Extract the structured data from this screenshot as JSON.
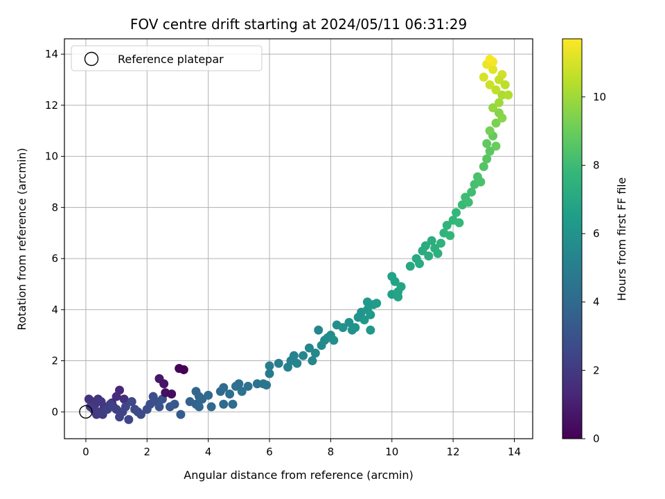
{
  "chart_data": {
    "type": "scatter",
    "title": "FOV centre drift starting at 2024/05/11 06:31:29",
    "xlabel": "Angular distance from reference (arcmin)",
    "ylabel": "Rotation from reference (arcmin)",
    "xlim": [
      -0.7,
      14.6
    ],
    "ylim": [
      -1.05,
      14.6
    ],
    "xticks": [
      0,
      2,
      4,
      6,
      8,
      10,
      12,
      14
    ],
    "yticks": [
      0,
      2,
      4,
      6,
      8,
      10,
      12,
      14
    ],
    "grid": true,
    "legend_position": "upper-left",
    "legend": [
      "Reference platepar"
    ],
    "reference_point": {
      "x": 0,
      "y": 0
    },
    "colorbar": {
      "label": "Hours from first FF file",
      "range": [
        0,
        11.7
      ],
      "ticks": [
        0,
        2,
        4,
        6,
        8,
        10
      ],
      "colormap": "viridis"
    },
    "colormap_stops": [
      "#440154",
      "#482878",
      "#3e4989",
      "#31688e",
      "#26828e",
      "#1f9e89",
      "#35b779",
      "#6ece58",
      "#b5de2b",
      "#fde725"
    ],
    "points": [
      [
        1.1,
        0.85,
        1.3
      ],
      [
        0.85,
        0.35,
        1.4
      ],
      [
        1.25,
        0.5,
        1.6
      ],
      [
        1.0,
        0.6,
        1.5
      ],
      [
        0.1,
        0.5,
        1.7
      ],
      [
        0.2,
        0.4,
        1.7
      ],
      [
        0.3,
        0.3,
        1.8
      ],
      [
        0.4,
        0.5,
        1.8
      ],
      [
        0.5,
        0.4,
        1.9
      ],
      [
        0.6,
        0.2,
        1.9
      ],
      [
        0.15,
        0.2,
        2.0
      ],
      [
        0.25,
        0.1,
        2.0
      ],
      [
        0.35,
        -0.1,
        2.0
      ],
      [
        0.45,
        0.0,
        2.1
      ],
      [
        0.55,
        -0.1,
        2.1
      ],
      [
        0.7,
        0.1,
        2.2
      ],
      [
        0.8,
        0.3,
        2.2
      ],
      [
        0.9,
        0.2,
        2.3
      ],
      [
        1.0,
        0.1,
        2.3
      ],
      [
        1.1,
        -0.2,
        2.4
      ],
      [
        1.2,
        0.0,
        2.4
      ],
      [
        1.3,
        0.2,
        2.5
      ],
      [
        1.4,
        -0.3,
        2.5
      ],
      [
        1.5,
        0.4,
        2.6
      ],
      [
        1.6,
        0.1,
        2.6
      ],
      [
        1.7,
        0.0,
        2.7
      ],
      [
        1.8,
        -0.1,
        2.7
      ],
      [
        2.0,
        0.1,
        2.8
      ],
      [
        2.1,
        0.3,
        2.8
      ],
      [
        2.2,
        0.6,
        2.9
      ],
      [
        2.3,
        0.4,
        2.9
      ],
      [
        2.4,
        0.2,
        3.0
      ],
      [
        2.5,
        0.5,
        3.0
      ],
      [
        2.4,
        1.3,
        0.7
      ],
      [
        2.55,
        1.1,
        0.6
      ],
      [
        2.6,
        0.75,
        0.5
      ],
      [
        2.8,
        0.7,
        0.4
      ],
      [
        3.05,
        1.7,
        0.1
      ],
      [
        3.2,
        1.65,
        0.0
      ],
      [
        2.75,
        0.2,
        3.2
      ],
      [
        2.9,
        0.3,
        3.3
      ],
      [
        3.1,
        -0.1,
        3.4
      ],
      [
        3.4,
        0.4,
        3.6
      ],
      [
        3.6,
        0.3,
        3.7
      ],
      [
        3.7,
        0.6,
        3.8
      ],
      [
        3.6,
        0.8,
        3.8
      ],
      [
        3.8,
        0.5,
        3.9
      ],
      [
        4.0,
        0.65,
        4.0
      ],
      [
        3.7,
        0.2,
        3.8
      ],
      [
        4.1,
        0.2,
        3.9
      ],
      [
        4.4,
        0.8,
        4.0
      ],
      [
        4.5,
        0.95,
        4.1
      ],
      [
        4.5,
        0.3,
        4.1
      ],
      [
        4.7,
        0.7,
        4.2
      ],
      [
        4.8,
        0.3,
        4.2
      ],
      [
        4.9,
        1.0,
        4.3
      ],
      [
        5.0,
        1.1,
        4.3
      ],
      [
        5.1,
        0.8,
        4.4
      ],
      [
        5.3,
        1.0,
        4.4
      ],
      [
        5.6,
        1.1,
        4.5
      ],
      [
        5.8,
        1.1,
        4.5
      ],
      [
        5.9,
        1.05,
        4.6
      ],
      [
        6.0,
        1.5,
        4.8
      ],
      [
        6.0,
        1.8,
        4.9
      ],
      [
        6.3,
        1.9,
        5.0
      ],
      [
        6.6,
        1.75,
        5.1
      ],
      [
        6.7,
        2.0,
        5.2
      ],
      [
        6.8,
        2.2,
        5.2
      ],
      [
        6.9,
        1.9,
        5.3
      ],
      [
        7.1,
        2.2,
        5.3
      ],
      [
        7.3,
        2.5,
        5.4
      ],
      [
        7.4,
        2.0,
        5.4
      ],
      [
        7.5,
        2.3,
        5.5
      ],
      [
        7.6,
        3.2,
        5.4
      ],
      [
        7.7,
        2.6,
        5.6
      ],
      [
        7.8,
        2.8,
        5.6
      ],
      [
        7.9,
        2.9,
        5.7
      ],
      [
        8.0,
        3.0,
        5.7
      ],
      [
        8.1,
        2.8,
        5.8
      ],
      [
        8.2,
        3.4,
        5.8
      ],
      [
        8.4,
        3.3,
        5.9
      ],
      [
        8.6,
        3.5,
        5.9
      ],
      [
        8.7,
        3.2,
        6.0
      ],
      [
        8.8,
        3.3,
        6.0
      ],
      [
        8.9,
        3.7,
        6.1
      ],
      [
        9.0,
        3.9,
        6.1
      ],
      [
        9.1,
        3.6,
        6.2
      ],
      [
        9.2,
        4.0,
        6.2
      ],
      [
        9.3,
        3.8,
        6.3
      ],
      [
        9.4,
        4.2,
        6.3
      ],
      [
        9.3,
        3.2,
        6.2
      ],
      [
        9.5,
        4.25,
        6.4
      ],
      [
        9.2,
        4.3,
        6.3
      ],
      [
        10.0,
        4.6,
        6.6
      ],
      [
        10.1,
        5.1,
        6.7
      ],
      [
        10.0,
        5.3,
        6.7
      ],
      [
        10.2,
        4.7,
        6.8
      ],
      [
        10.3,
        4.9,
        6.8
      ],
      [
        10.2,
        4.5,
        6.8
      ],
      [
        10.6,
        5.7,
        7.0
      ],
      [
        10.8,
        6.0,
        7.1
      ],
      [
        10.9,
        5.8,
        7.1
      ],
      [
        11.0,
        6.3,
        7.2
      ],
      [
        11.1,
        6.5,
        7.2
      ],
      [
        11.2,
        6.1,
        7.3
      ],
      [
        11.3,
        6.7,
        7.3
      ],
      [
        11.4,
        6.4,
        7.4
      ],
      [
        11.5,
        6.2,
        7.4
      ],
      [
        11.6,
        6.6,
        7.5
      ],
      [
        11.7,
        7.0,
        7.6
      ],
      [
        11.8,
        7.3,
        7.6
      ],
      [
        11.9,
        6.9,
        7.7
      ],
      [
        12.0,
        7.5,
        7.7
      ],
      [
        12.1,
        7.8,
        7.8
      ],
      [
        12.2,
        7.4,
        7.8
      ],
      [
        12.3,
        8.1,
        7.9
      ],
      [
        12.4,
        8.4,
        8.0
      ],
      [
        12.5,
        8.2,
        8.0
      ],
      [
        12.6,
        8.6,
        8.1
      ],
      [
        12.7,
        8.9,
        8.2
      ],
      [
        12.8,
        9.2,
        8.3
      ],
      [
        12.9,
        9.0,
        8.3
      ],
      [
        13.0,
        9.6,
        8.5
      ],
      [
        13.1,
        9.9,
        8.6
      ],
      [
        13.2,
        10.2,
        8.7
      ],
      [
        13.1,
        10.5,
        8.8
      ],
      [
        13.3,
        10.8,
        8.9
      ],
      [
        13.4,
        10.4,
        9.0
      ],
      [
        13.2,
        11.0,
        9.2
      ],
      [
        13.4,
        11.3,
        9.3
      ],
      [
        13.5,
        11.7,
        9.5
      ],
      [
        13.6,
        11.5,
        9.6
      ],
      [
        13.3,
        11.9,
        9.8
      ],
      [
        13.5,
        12.1,
        10.0
      ],
      [
        13.6,
        12.4,
        10.2
      ],
      [
        13.8,
        12.4,
        10.3
      ],
      [
        13.0,
        13.1,
        11.0
      ],
      [
        13.2,
        12.8,
        10.8
      ],
      [
        13.4,
        12.6,
        10.6
      ],
      [
        13.3,
        13.4,
        11.2
      ],
      [
        13.1,
        13.6,
        11.4
      ],
      [
        13.3,
        13.7,
        11.5
      ],
      [
        13.2,
        13.8,
        11.6
      ],
      [
        13.6,
        13.2,
        10.9
      ],
      [
        13.5,
        13.0,
        10.7
      ],
      [
        13.7,
        12.8,
        10.5
      ]
    ]
  }
}
